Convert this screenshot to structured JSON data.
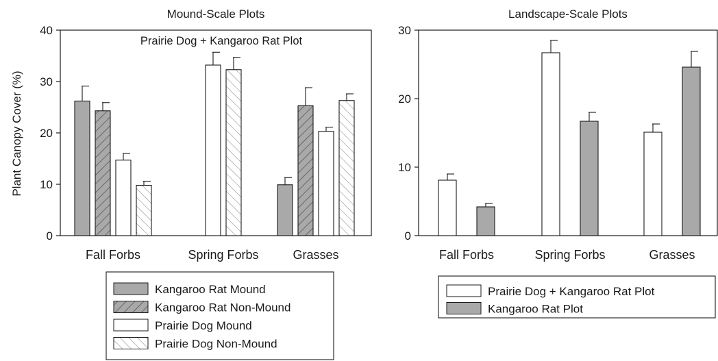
{
  "chart_data": [
    {
      "type": "bar",
      "title": "Mound-Scale Plots",
      "subtitle": "Prairie Dog + Kangaroo Rat Plot",
      "xlabel": "",
      "ylabel": "Plant Canopy Cover (%)",
      "ylim": [
        0,
        40
      ],
      "yticks": [
        "0",
        "10",
        "20",
        "30",
        "40"
      ],
      "grid": false,
      "legend_position": "below",
      "categories": [
        "Fall Forbs",
        "Spring Forbs",
        "Grasses"
      ],
      "series": [
        {
          "name": "Kangaroo Rat Mound",
          "style": "solid-gray",
          "values": [
            26.2,
            null,
            9.9
          ],
          "errors": [
            2.9,
            null,
            1.4
          ]
        },
        {
          "name": "Kangaroo Rat Non-Mound",
          "style": "hatched-gray",
          "values": [
            24.3,
            null,
            25.3
          ],
          "errors": [
            1.6,
            null,
            3.5
          ]
        },
        {
          "name": "Prairie Dog Mound",
          "style": "white",
          "values": [
            14.7,
            33.2,
            20.3
          ],
          "errors": [
            1.3,
            2.5,
            0.8
          ]
        },
        {
          "name": "Prairie Dog Non-Mound",
          "style": "hatched-white",
          "values": [
            9.8,
            32.3,
            26.3
          ],
          "errors": [
            0.8,
            2.4,
            1.3
          ]
        }
      ]
    },
    {
      "type": "bar",
      "title": "Landscape-Scale Plots",
      "xlabel": "",
      "ylabel": "",
      "ylim": [
        0,
        30
      ],
      "yticks": [
        "0",
        "10",
        "20",
        "30"
      ],
      "grid": false,
      "legend_position": "below",
      "categories": [
        "Fall Forbs",
        "Spring Forbs",
        "Grasses"
      ],
      "series": [
        {
          "name": "Prairie Dog + Kangaroo Rat Plot",
          "style": "white",
          "values": [
            8.1,
            26.7,
            15.1
          ],
          "errors": [
            0.9,
            1.8,
            1.2
          ]
        },
        {
          "name": "Kangaroo Rat Plot",
          "style": "solid-gray",
          "values": [
            4.2,
            16.7,
            24.6
          ],
          "errors": [
            0.5,
            1.3,
            2.3
          ]
        }
      ]
    }
  ],
  "colors": {
    "gray": "#a9a9a9",
    "white": "#ffffff",
    "stroke": "#1a1a1a",
    "hatch": "#555555"
  }
}
